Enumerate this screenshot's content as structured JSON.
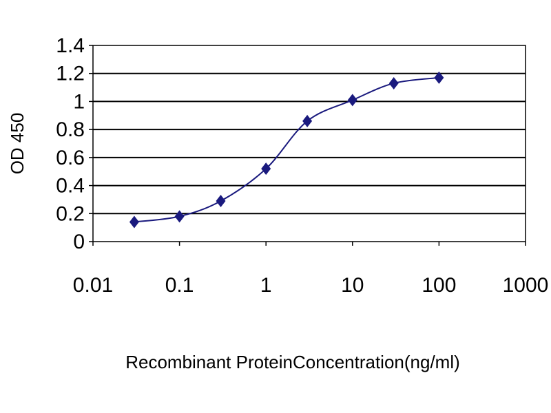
{
  "chart_data": {
    "type": "line",
    "xlabel": "Recombinant ProteinConcentration(ng/ml)",
    "ylabel": "OD 450",
    "x_scale": "log",
    "xlim": [
      0.01,
      1000
    ],
    "ylim": [
      0,
      1.4
    ],
    "x_ticks": [
      0.01,
      0.1,
      1,
      10,
      100,
      1000
    ],
    "x_tick_labels": [
      "0.01",
      "0.1",
      "1",
      "10",
      "100",
      "1000"
    ],
    "y_ticks": [
      0,
      0.2,
      0.4,
      0.6,
      0.8,
      1,
      1.2,
      1.4
    ],
    "y_tick_labels": [
      "0",
      "0.2",
      "0.4",
      "0.6",
      "0.8",
      "1",
      "1.2",
      "1.4"
    ],
    "grid": "horizontal",
    "legend": "none",
    "series": [
      {
        "x": [
          0.03,
          0.1,
          0.3,
          1,
          3,
          10,
          30,
          100
        ],
        "y": [
          0.14,
          0.18,
          0.29,
          0.52,
          0.86,
          1.01,
          1.13,
          1.17
        ],
        "color": "#1a1a7e",
        "marker": "diamond"
      }
    ]
  }
}
